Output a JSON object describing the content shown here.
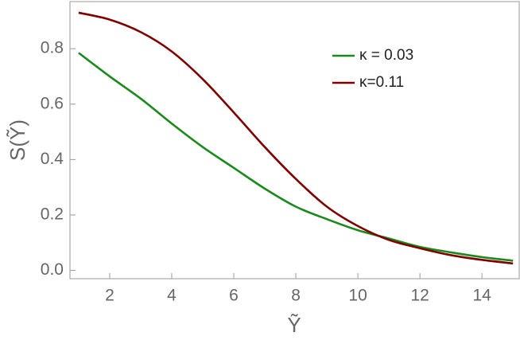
{
  "chart_data": {
    "type": "line",
    "x_label": "Ỹ",
    "y_label": "S(Ỹ)",
    "x": [
      1,
      2,
      3,
      4,
      5,
      6,
      7,
      8,
      9,
      10,
      11,
      12,
      13,
      14,
      15
    ],
    "series": [
      {
        "name": "κ = 0.03",
        "color": "#1a8a1a",
        "values": [
          0.785,
          0.7,
          0.62,
          0.53,
          0.445,
          0.37,
          0.295,
          0.23,
          0.185,
          0.145,
          0.115,
          0.085,
          0.065,
          0.048,
          0.035
        ]
      },
      {
        "name": "κ=0.11",
        "color": "#800000",
        "values": [
          0.93,
          0.905,
          0.86,
          0.79,
          0.69,
          0.57,
          0.445,
          0.33,
          0.23,
          0.16,
          0.11,
          0.08,
          0.055,
          0.038,
          0.025
        ]
      }
    ],
    "xlim": [
      0.72,
      15.2
    ],
    "ylim": [
      -0.03,
      0.97
    ],
    "xticks": [
      2,
      4,
      6,
      8,
      10,
      12,
      14
    ],
    "yticks": [
      {
        "value": 0,
        "label": "0.0"
      },
      {
        "value": 0.2,
        "label": "0.2"
      },
      {
        "value": 0.4,
        "label": "0.4"
      },
      {
        "value": 0.6,
        "label": "0.6"
      },
      {
        "value": 0.8,
        "label": "0.8"
      }
    ],
    "legend": "top-right",
    "grid": false
  }
}
